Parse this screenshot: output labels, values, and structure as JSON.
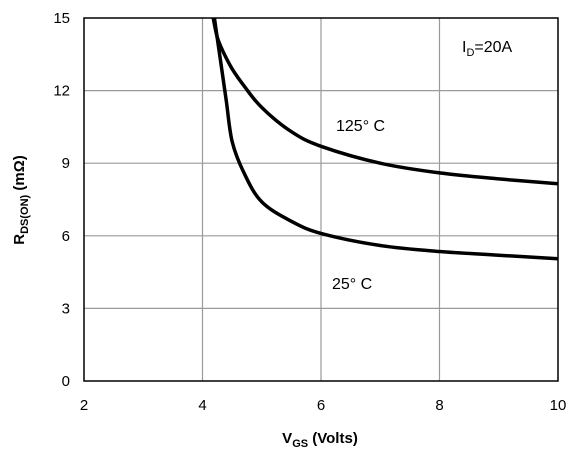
{
  "chart_data": {
    "type": "line",
    "xlabel": {
      "main": "V",
      "sub": "GS",
      "rest": " (Volts)"
    },
    "ylabel": {
      "main": "R",
      "sub": "DS(ON)",
      "rest": " (mΩ)"
    },
    "xlim": [
      2,
      10
    ],
    "ylim": [
      0,
      15
    ],
    "xticks": [
      2,
      4,
      6,
      8,
      10
    ],
    "yticks": [
      0,
      3,
      6,
      9,
      12,
      15
    ],
    "grid": true,
    "condition": {
      "main": "I",
      "sub": "D",
      "rest": "=20A"
    },
    "series": [
      {
        "name": "125° C",
        "x": [
          4.18,
          4.25,
          4.35,
          4.5,
          4.7,
          5.0,
          5.5,
          6.0,
          7.0,
          8.0,
          9.0,
          10.0
        ],
        "y": [
          15.0,
          14.2,
          13.6,
          12.9,
          12.2,
          11.3,
          10.3,
          9.7,
          9.0,
          8.6,
          8.35,
          8.15
        ]
      },
      {
        "name": "25° C",
        "x": [
          4.2,
          4.3,
          4.4,
          4.5,
          4.7,
          5.0,
          5.5,
          6.0,
          7.0,
          8.0,
          9.0,
          10.0
        ],
        "y": [
          15.0,
          13.3,
          11.6,
          9.9,
          8.6,
          7.4,
          6.6,
          6.1,
          5.6,
          5.35,
          5.2,
          5.05
        ]
      }
    ]
  }
}
